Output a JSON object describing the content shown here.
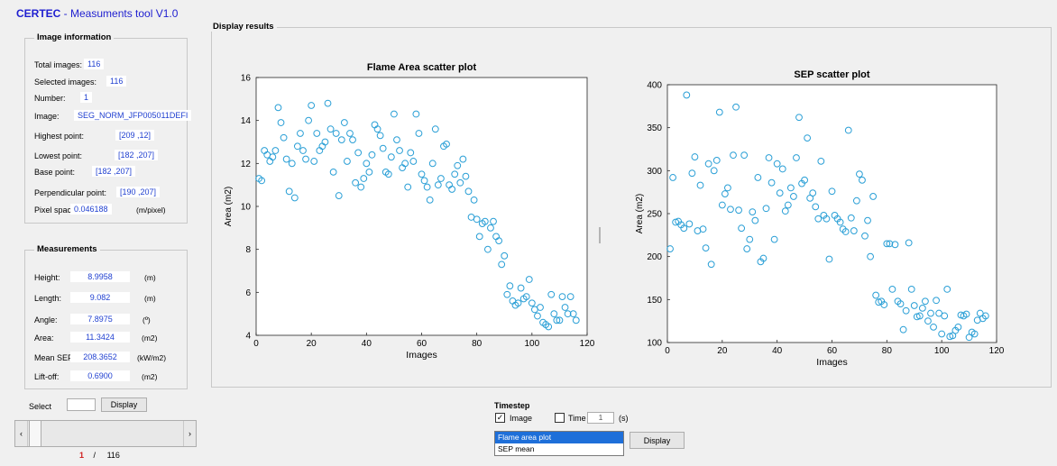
{
  "app": {
    "brand": "CERTEC",
    "title_rest": " - Measuments tool  V1.0"
  },
  "image_info": {
    "title": "Image information",
    "rows": [
      {
        "label": "Total images:",
        "value": "116"
      },
      {
        "label": "Selected images:",
        "value": "116"
      },
      {
        "label": "Number:",
        "value": "1"
      },
      {
        "label": "Image:",
        "value": "SEG_NORM_JFP005011DEFI"
      },
      {
        "label": "Highest point:",
        "value": "[209 ,12]"
      },
      {
        "label": "Lowest point:",
        "value": "[182 ,207]"
      },
      {
        "label": "Base point:",
        "value": "[182 ,207]"
      },
      {
        "label": "Perpendicular point:",
        "value": "[190 ,207]"
      },
      {
        "label": "Pixel spacing:",
        "value": "0.046188",
        "unit": "(m/pixel)"
      }
    ]
  },
  "measurements": {
    "title": "Measurements",
    "rows": [
      {
        "label": "Height:",
        "value": "8.9958",
        "unit": "(m)"
      },
      {
        "label": "Length:",
        "value": "9.082",
        "unit": "(m)"
      },
      {
        "label": "Angle:",
        "value": "7.8975",
        "unit": "(º)"
      },
      {
        "label": "Area:",
        "value": "11.3424",
        "unit": "(m2)"
      },
      {
        "label": "Mean SEP:",
        "value": "208.3652",
        "unit": "(kW/m2)"
      },
      {
        "label": "Lift-off:",
        "value": "0.6900",
        "unit": "(m2)"
      }
    ]
  },
  "select": {
    "label": "Select",
    "input_value": "",
    "display_button": "Display"
  },
  "slider": {
    "current": "1",
    "separator": "/",
    "total": "116",
    "position": 0.0,
    "left_arrow": "‹",
    "right_arrow": "›"
  },
  "display_results": {
    "title": "Display results"
  },
  "timestep": {
    "title": "Timestep",
    "image_label": "Image",
    "image_checked": true,
    "time_label": "Time",
    "time_checked": false,
    "time_value": "1",
    "time_unit": "(s)"
  },
  "plot_list": {
    "options": [
      "Flame area plot",
      "SEP mean"
    ],
    "selected": "Flame area plot",
    "display_button": "Display"
  },
  "colors": {
    "brand": "#1f1fd0",
    "marker": "#2a9fd6",
    "value_text": "#1f3fd0",
    "selection": "#1e6fd9"
  },
  "chart_data": [
    {
      "type": "scatter",
      "title": "Flame Area scatter plot",
      "xlabel": "Images",
      "ylabel": "Area (m2)",
      "xlim": [
        0,
        120
      ],
      "ylim": [
        4,
        16
      ],
      "xticks": [
        0,
        20,
        40,
        60,
        80,
        100,
        120
      ],
      "yticks": [
        4,
        6,
        8,
        10,
        12,
        14,
        16
      ],
      "x": [
        1,
        2,
        3,
        4,
        5,
        6,
        7,
        8,
        9,
        10,
        11,
        12,
        13,
        14,
        15,
        16,
        17,
        18,
        19,
        20,
        21,
        22,
        23,
        24,
        25,
        26,
        27,
        28,
        29,
        30,
        31,
        32,
        33,
        34,
        35,
        36,
        37,
        38,
        39,
        40,
        41,
        42,
        43,
        44,
        45,
        46,
        47,
        48,
        49,
        50,
        51,
        52,
        53,
        54,
        55,
        56,
        57,
        58,
        59,
        60,
        61,
        62,
        63,
        64,
        65,
        66,
        67,
        68,
        69,
        70,
        71,
        72,
        73,
        74,
        75,
        76,
        77,
        78,
        79,
        80,
        81,
        82,
        83,
        84,
        85,
        86,
        87,
        88,
        89,
        90,
        91,
        92,
        93,
        94,
        95,
        96,
        97,
        98,
        99,
        100,
        101,
        102,
        103,
        104,
        105,
        106,
        107,
        108,
        109,
        110,
        111,
        112,
        113,
        114,
        115,
        116
      ],
      "y": [
        11.3,
        11.2,
        12.6,
        12.4,
        12.1,
        12.3,
        12.6,
        14.6,
        13.9,
        13.2,
        12.2,
        10.7,
        12.0,
        10.4,
        12.8,
        13.4,
        12.6,
        12.2,
        14.0,
        14.7,
        12.1,
        13.4,
        12.6,
        12.8,
        13.0,
        14.8,
        13.6,
        11.6,
        13.4,
        10.5,
        13.1,
        13.9,
        12.1,
        13.4,
        13.1,
        11.1,
        12.5,
        10.9,
        11.3,
        12.0,
        11.6,
        12.4,
        13.8,
        13.6,
        13.3,
        12.7,
        11.6,
        11.5,
        12.3,
        14.3,
        13.1,
        12.6,
        11.8,
        12.0,
        10.9,
        12.5,
        12.1,
        14.3,
        13.4,
        11.5,
        11.2,
        10.9,
        10.3,
        12.0,
        13.6,
        11.0,
        11.3,
        12.8,
        12.9,
        11.0,
        10.8,
        11.5,
        11.9,
        11.1,
        12.2,
        11.4,
        10.7,
        9.5,
        10.3,
        9.4,
        8.6,
        9.2,
        9.3,
        8.0,
        9.0,
        9.3,
        8.6,
        8.4,
        7.3,
        7.7,
        5.9,
        6.3,
        5.6,
        5.4,
        5.5,
        6.2,
        5.7,
        5.8,
        6.6,
        5.5,
        5.2,
        4.9,
        5.3,
        4.6,
        4.5,
        4.4,
        5.9,
        5.0,
        4.7,
        4.7,
        5.8,
        5.3,
        5.0,
        5.8,
        5.0,
        4.7
      ]
    },
    {
      "type": "scatter",
      "title": "SEP scatter plot",
      "xlabel": "Images",
      "ylabel": "Area (m2)",
      "xlim": [
        0,
        120
      ],
      "ylim": [
        100,
        400
      ],
      "xticks": [
        0,
        20,
        40,
        60,
        80,
        100,
        120
      ],
      "yticks": [
        100,
        150,
        200,
        250,
        300,
        350,
        400
      ],
      "x": [
        1,
        2,
        3,
        4,
        5,
        6,
        7,
        8,
        9,
        10,
        11,
        12,
        13,
        14,
        15,
        16,
        17,
        18,
        19,
        20,
        21,
        22,
        23,
        24,
        25,
        26,
        27,
        28,
        29,
        30,
        31,
        32,
        33,
        34,
        35,
        36,
        37,
        38,
        39,
        40,
        41,
        42,
        43,
        44,
        45,
        46,
        47,
        48,
        49,
        50,
        51,
        52,
        53,
        54,
        55,
        56,
        57,
        58,
        59,
        60,
        61,
        62,
        63,
        64,
        65,
        66,
        67,
        68,
        69,
        70,
        71,
        72,
        73,
        74,
        75,
        76,
        77,
        78,
        79,
        80,
        81,
        82,
        83,
        84,
        85,
        86,
        87,
        88,
        89,
        90,
        91,
        92,
        93,
        94,
        95,
        96,
        97,
        98,
        99,
        100,
        101,
        102,
        103,
        104,
        105,
        106,
        107,
        108,
        109,
        110,
        111,
        112,
        113,
        114,
        115,
        116
      ],
      "y": [
        209,
        292,
        240,
        241,
        237,
        233,
        388,
        238,
        297,
        316,
        230,
        283,
        232,
        210,
        308,
        191,
        300,
        312,
        368,
        260,
        273,
        280,
        255,
        318,
        374,
        254,
        233,
        318,
        209,
        220,
        252,
        242,
        292,
        194,
        198,
        256,
        315,
        286,
        220,
        308,
        274,
        302,
        253,
        260,
        280,
        270,
        315,
        362,
        285,
        289,
        338,
        268,
        274,
        258,
        244,
        311,
        248,
        244,
        197,
        276,
        248,
        244,
        240,
        232,
        229,
        347,
        245,
        230,
        265,
        296,
        289,
        224,
        242,
        200,
        270,
        155,
        147,
        148,
        144,
        215,
        215,
        162,
        214,
        148,
        145,
        115,
        137,
        216,
        162,
        143,
        130,
        131,
        140,
        148,
        125,
        134,
        118,
        149,
        134,
        110,
        131,
        162,
        107,
        108,
        114,
        118,
        132,
        131,
        133,
        106,
        112,
        110,
        126,
        134,
        128,
        131
      ]
    }
  ]
}
